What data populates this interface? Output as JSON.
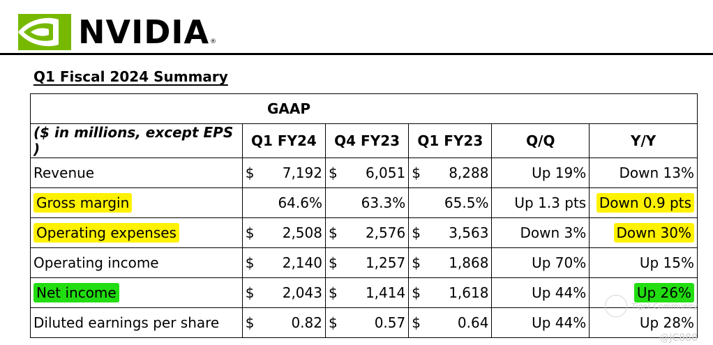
{
  "brand": {
    "name": "NVIDIA",
    "reg_mark": "®",
    "accent_color": "#76b900"
  },
  "title": "Q1 Fiscal 2024 Summary",
  "table": {
    "group_header": "GAAP",
    "headers": [
      "($ in millions, except EPS )",
      "Q1 FY24",
      "Q4 FY23",
      "Q1 FY23",
      "Q/Q",
      "Y/Y"
    ],
    "rows": [
      {
        "label": "Revenue",
        "q1fy24_cur": "$",
        "q1fy24": "7,192",
        "q4fy23_cur": "$",
        "q4fy23": "6,051",
        "q1fy23_cur": "$",
        "q1fy23": "8,288",
        "qq": "Up 19%",
        "yy": "Down 13%"
      },
      {
        "label": "Gross margin",
        "q1fy24_cur": "",
        "q1fy24": "64.6%",
        "q4fy23_cur": "",
        "q4fy23": "63.3%",
        "q1fy23_cur": "",
        "q1fy23": "65.5%",
        "qq": "Up 1.3 pts",
        "yy": "Down 0.9 pts"
      },
      {
        "label": "Operating expenses",
        "q1fy24_cur": "$",
        "q1fy24": "2,508",
        "q4fy23_cur": "$",
        "q4fy23": "2,576",
        "q1fy23_cur": "$",
        "q1fy23": "3,563",
        "qq": "Down 3%",
        "yy": "Down 30%"
      },
      {
        "label": "Operating income",
        "q1fy24_cur": "$",
        "q1fy24": "2,140",
        "q4fy23_cur": "$",
        "q4fy23": "1,257",
        "q1fy23_cur": "$",
        "q1fy23": "1,868",
        "qq": "Up 70%",
        "yy": "Up 15%"
      },
      {
        "label": "Net income",
        "q1fy24_cur": "$",
        "q1fy24": "2,043",
        "q4fy23_cur": "$",
        "q4fy23": "1,414",
        "q1fy23_cur": "$",
        "q1fy23": "1,618",
        "qq": "Up 44%",
        "yy": "Up 26%"
      },
      {
        "label": "Diluted earnings per share",
        "q1fy24_cur": "$",
        "q1fy24": "0.82",
        "q4fy23_cur": "$",
        "q4fy23": "0.57",
        "q1fy23_cur": "$",
        "q1fy23": "0.64",
        "qq": "Up 44%",
        "yy": "Up 28%"
      }
    ]
  },
  "highlights": {
    "yellow": "#fff200",
    "green": "#22dd11"
  },
  "watermark": {
    "text": "Tiger Community",
    "id": "@JC888"
  }
}
